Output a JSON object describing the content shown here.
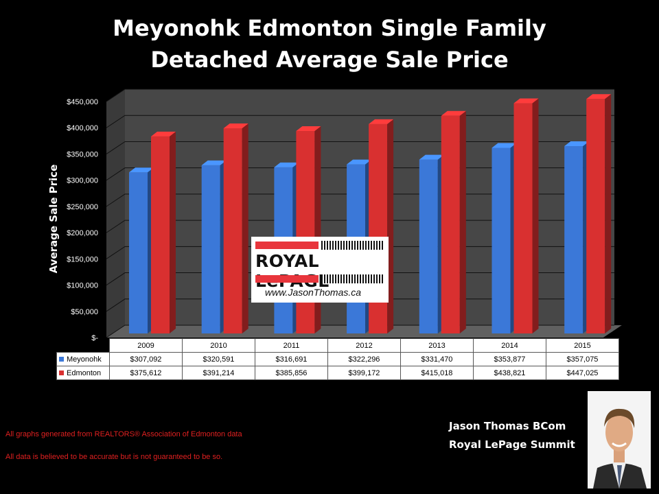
{
  "chart_data": {
    "type": "bar",
    "title_lines": [
      "Meyonohk Edmonton Single Family",
      "Detached Average Sale Price"
    ],
    "ylabel": "Average Sale Price",
    "xlabel": "",
    "categories": [
      "2009",
      "2010",
      "2011",
      "2012",
      "2013",
      "2014",
      "2015"
    ],
    "series": [
      {
        "name": "Meyonohk",
        "values": [
          307092,
          320591,
          316691,
          322296,
          331470,
          353877,
          357075
        ],
        "labels": [
          "$307,092",
          "$320,591",
          "$316,691",
          "$322,296",
          "$331,470",
          "$353,877",
          "$357,075"
        ],
        "color": "#3b78d8"
      },
      {
        "name": "Edmonton",
        "values": [
          375612,
          391214,
          385856,
          399172,
          415018,
          438821,
          447025
        ],
        "labels": [
          "$375,612",
          "$391,214",
          "$385,856",
          "$399,172",
          "$415,018",
          "$438,821",
          "$447,025"
        ],
        "color": "#d93030"
      }
    ],
    "ylim": [
      0,
      450000
    ],
    "yticks": [
      0,
      50000,
      100000,
      150000,
      200000,
      250000,
      300000,
      350000,
      400000,
      450000
    ],
    "ytick_labels": [
      "$-",
      "$50,000",
      "$100,000",
      "$150,000",
      "$200,000",
      "$250,000",
      "$300,000",
      "$350,000",
      "$400,000",
      "$450,000"
    ],
    "grid": true,
    "legend": "data-table"
  },
  "logo": {
    "brand": "ROYAL LePAGE",
    "url": "www.JasonThomas.ca"
  },
  "footnotes": [
    "All graphs generated from REALTORS® Association of Edmonton data",
    "All data is believed to be accurate but is not guaranteed to be so."
  ],
  "agent": {
    "name": "Jason Thomas BCom",
    "company": "Royal LePage Summit"
  },
  "colors": {
    "background": "#000000",
    "plot_wall": "#4a4a4a",
    "footnote": "#e02020"
  }
}
